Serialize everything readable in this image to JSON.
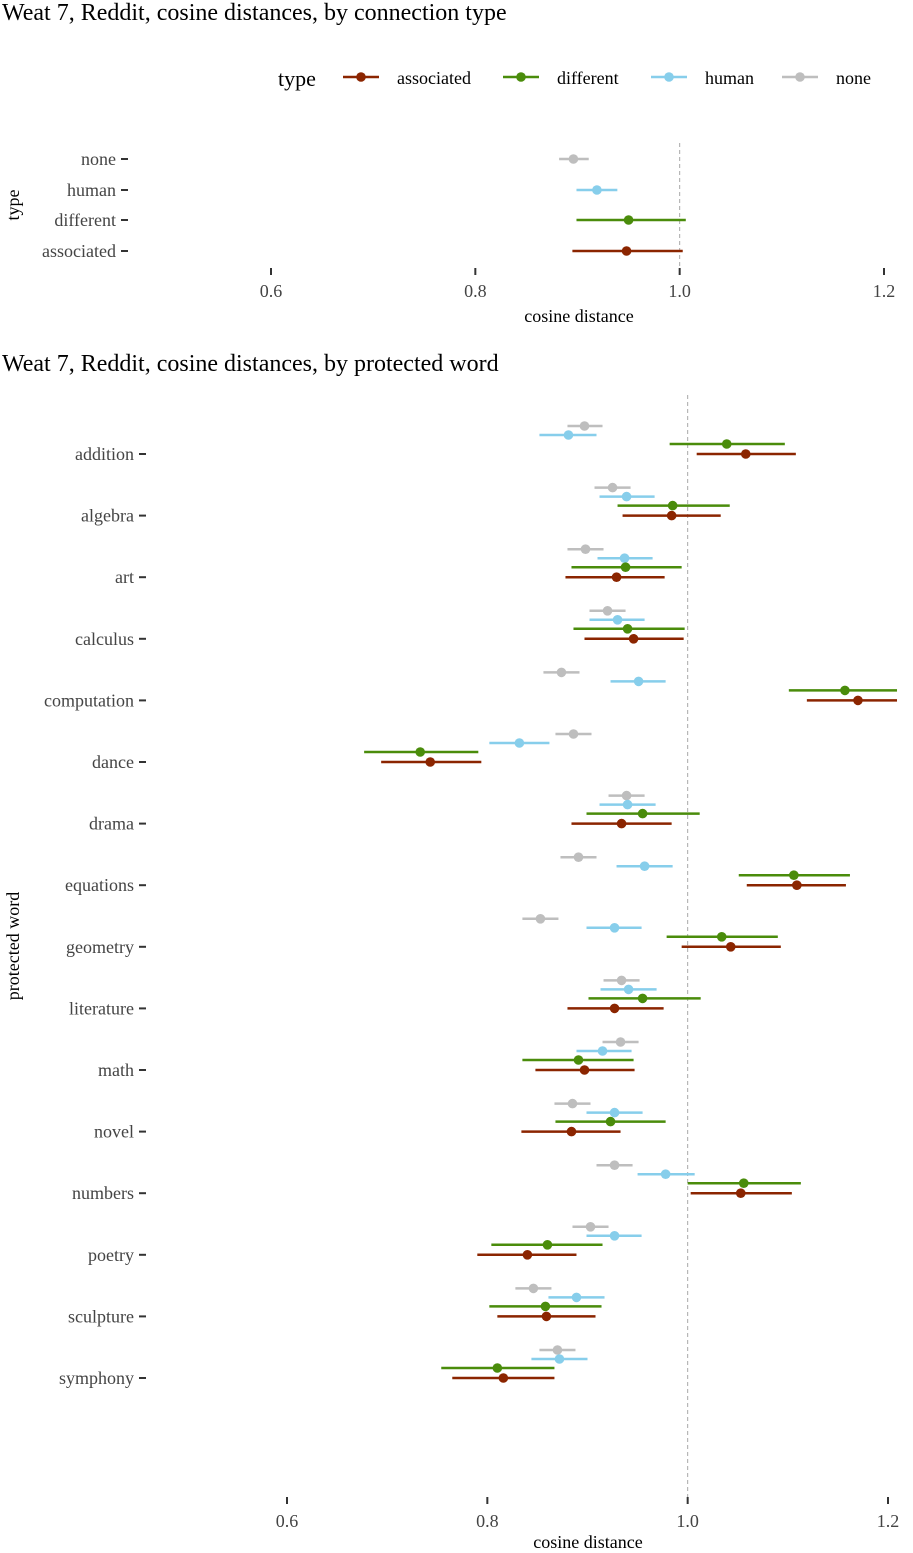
{
  "colors": {
    "associated": "#8B2500",
    "different": "#4A8C0B",
    "human": "#87CEEB",
    "none": "#BEBEBE",
    "reference_line": "#A9A9A9"
  },
  "chart_data": [
    {
      "type": "scatter",
      "style": "point-with-horizontal-interval",
      "title": "Weat 7, Reddit,  cosine distances, by connection type",
      "xlabel": "cosine distance",
      "ylabel": "type",
      "xlim": [
        0.47,
        1.22
      ],
      "xticks": [
        0.6,
        0.8,
        1.0,
        1.2
      ],
      "xtick_labels": [
        "0.6",
        "0.8",
        "1.0",
        "1.2"
      ],
      "reference_x": 1.0,
      "legend": {
        "title": "type",
        "position": "top",
        "entries": [
          "associated",
          "different",
          "human",
          "none"
        ]
      },
      "categories": [
        "none",
        "human",
        "different",
        "associated"
      ],
      "series": [
        {
          "name": "none",
          "color_key": "none",
          "points": [
            {
              "category": "none",
              "x": 0.896,
              "lo": 0.882,
              "hi": 0.911
            }
          ]
        },
        {
          "name": "human",
          "color_key": "human",
          "points": [
            {
              "category": "human",
              "x": 0.919,
              "lo": 0.899,
              "hi": 0.939
            }
          ]
        },
        {
          "name": "different",
          "color_key": "different",
          "points": [
            {
              "category": "different",
              "x": 0.95,
              "lo": 0.899,
              "hi": 1.006
            }
          ]
        },
        {
          "name": "associated",
          "color_key": "associated",
          "points": [
            {
              "category": "associated",
              "x": 0.948,
              "lo": 0.895,
              "hi": 1.003
            }
          ]
        }
      ]
    },
    {
      "type": "scatter",
      "style": "point-with-horizontal-interval",
      "title": "Weat 7, Reddit, cosine distances, by protected word",
      "xlabel": "cosine distance",
      "ylabel": "protected word",
      "xlim": [
        0.45,
        1.22
      ],
      "xticks": [
        0.6,
        0.8,
        1.0,
        1.2
      ],
      "xtick_labels": [
        "0.6",
        "0.8",
        "1.0",
        "1.2"
      ],
      "reference_x": 1.0,
      "categories": [
        "addition",
        "algebra",
        "art",
        "calculus",
        "computation",
        "dance",
        "drama",
        "equations",
        "geometry",
        "literature",
        "math",
        "novel",
        "numbers",
        "poetry",
        "sculpture",
        "symphony"
      ],
      "series_order": [
        "none",
        "human",
        "different",
        "associated"
      ],
      "series": [
        {
          "name": "none",
          "color_key": "none",
          "points": [
            {
              "category": "addition",
              "x": 0.897,
              "lo": 0.88,
              "hi": 0.915
            },
            {
              "category": "algebra",
              "x": 0.925,
              "lo": 0.907,
              "hi": 0.943
            },
            {
              "category": "art",
              "x": 0.898,
              "lo": 0.88,
              "hi": 0.916
            },
            {
              "category": "calculus",
              "x": 0.92,
              "lo": 0.902,
              "hi": 0.938
            },
            {
              "category": "computation",
              "x": 0.874,
              "lo": 0.856,
              "hi": 0.892
            },
            {
              "category": "dance",
              "x": 0.886,
              "lo": 0.868,
              "hi": 0.904
            },
            {
              "category": "drama",
              "x": 0.939,
              "lo": 0.921,
              "hi": 0.957
            },
            {
              "category": "equations",
              "x": 0.891,
              "lo": 0.873,
              "hi": 0.909
            },
            {
              "category": "geometry",
              "x": 0.853,
              "lo": 0.835,
              "hi": 0.871
            },
            {
              "category": "literature",
              "x": 0.934,
              "lo": 0.916,
              "hi": 0.952
            },
            {
              "category": "math",
              "x": 0.933,
              "lo": 0.915,
              "hi": 0.951
            },
            {
              "category": "novel",
              "x": 0.885,
              "lo": 0.867,
              "hi": 0.903
            },
            {
              "category": "numbers",
              "x": 0.927,
              "lo": 0.909,
              "hi": 0.945
            },
            {
              "category": "poetry",
              "x": 0.903,
              "lo": 0.885,
              "hi": 0.921
            },
            {
              "category": "sculpture",
              "x": 0.846,
              "lo": 0.828,
              "hi": 0.864
            },
            {
              "category": "symphony",
              "x": 0.87,
              "lo": 0.852,
              "hi": 0.888
            }
          ]
        },
        {
          "name": "human",
          "color_key": "human",
          "points": [
            {
              "category": "addition",
              "x": 0.881,
              "lo": 0.852,
              "hi": 0.909
            },
            {
              "category": "algebra",
              "x": 0.939,
              "lo": 0.912,
              "hi": 0.967
            },
            {
              "category": "art",
              "x": 0.937,
              "lo": 0.91,
              "hi": 0.965
            },
            {
              "category": "calculus",
              "x": 0.93,
              "lo": 0.902,
              "hi": 0.957
            },
            {
              "category": "computation",
              "x": 0.951,
              "lo": 0.923,
              "hi": 0.978
            },
            {
              "category": "dance",
              "x": 0.832,
              "lo": 0.802,
              "hi": 0.862
            },
            {
              "category": "drama",
              "x": 0.94,
              "lo": 0.912,
              "hi": 0.968
            },
            {
              "category": "equations",
              "x": 0.957,
              "lo": 0.929,
              "hi": 0.985
            },
            {
              "category": "geometry",
              "x": 0.927,
              "lo": 0.899,
              "hi": 0.954
            },
            {
              "category": "literature",
              "x": 0.941,
              "lo": 0.913,
              "hi": 0.969
            },
            {
              "category": "math",
              "x": 0.915,
              "lo": 0.889,
              "hi": 0.944
            },
            {
              "category": "novel",
              "x": 0.927,
              "lo": 0.899,
              "hi": 0.955
            },
            {
              "category": "numbers",
              "x": 0.978,
              "lo": 0.95,
              "hi": 1.007
            },
            {
              "category": "poetry",
              "x": 0.927,
              "lo": 0.899,
              "hi": 0.954
            },
            {
              "category": "sculpture",
              "x": 0.889,
              "lo": 0.861,
              "hi": 0.917
            },
            {
              "category": "symphony",
              "x": 0.872,
              "lo": 0.844,
              "hi": 0.9
            }
          ]
        },
        {
          "name": "different",
          "color_key": "different",
          "points": [
            {
              "category": "addition",
              "x": 1.039,
              "lo": 0.982,
              "hi": 1.097
            },
            {
              "category": "algebra",
              "x": 0.985,
              "lo": 0.93,
              "hi": 1.042
            },
            {
              "category": "art",
              "x": 0.938,
              "lo": 0.884,
              "hi": 0.994
            },
            {
              "category": "calculus",
              "x": 0.94,
              "lo": 0.886,
              "hi": 0.997
            },
            {
              "category": "computation",
              "x": 1.157,
              "lo": 1.101,
              "hi": 1.213
            },
            {
              "category": "dance",
              "x": 0.733,
              "lo": 0.677,
              "hi": 0.791
            },
            {
              "category": "drama",
              "x": 0.955,
              "lo": 0.899,
              "hi": 1.012
            },
            {
              "category": "equations",
              "x": 1.106,
              "lo": 1.051,
              "hi": 1.162
            },
            {
              "category": "geometry",
              "x": 1.034,
              "lo": 0.979,
              "hi": 1.09
            },
            {
              "category": "literature",
              "x": 0.955,
              "lo": 0.901,
              "hi": 1.013
            },
            {
              "category": "math",
              "x": 0.891,
              "lo": 0.835,
              "hi": 0.946
            },
            {
              "category": "novel",
              "x": 0.923,
              "lo": 0.868,
              "hi": 0.978
            },
            {
              "category": "numbers",
              "x": 1.056,
              "lo": 1.0,
              "hi": 1.113
            },
            {
              "category": "poetry",
              "x": 0.86,
              "lo": 0.804,
              "hi": 0.915
            },
            {
              "category": "sculpture",
              "x": 0.858,
              "lo": 0.802,
              "hi": 0.914
            },
            {
              "category": "symphony",
              "x": 0.81,
              "lo": 0.754,
              "hi": 0.867
            }
          ]
        },
        {
          "name": "associated",
          "color_key": "associated",
          "points": [
            {
              "category": "addition",
              "x": 1.058,
              "lo": 1.009,
              "hi": 1.108
            },
            {
              "category": "algebra",
              "x": 0.984,
              "lo": 0.935,
              "hi": 1.033
            },
            {
              "category": "art",
              "x": 0.929,
              "lo": 0.878,
              "hi": 0.977
            },
            {
              "category": "calculus",
              "x": 0.946,
              "lo": 0.897,
              "hi": 0.996
            },
            {
              "category": "computation",
              "x": 1.17,
              "lo": 1.119,
              "hi": 1.222
            },
            {
              "category": "dance",
              "x": 0.743,
              "lo": 0.694,
              "hi": 0.794
            },
            {
              "category": "drama",
              "x": 0.934,
              "lo": 0.884,
              "hi": 0.984
            },
            {
              "category": "equations",
              "x": 1.109,
              "lo": 1.059,
              "hi": 1.158
            },
            {
              "category": "geometry",
              "x": 1.043,
              "lo": 0.994,
              "hi": 1.093
            },
            {
              "category": "literature",
              "x": 0.927,
              "lo": 0.88,
              "hi": 0.976
            },
            {
              "category": "math",
              "x": 0.897,
              "lo": 0.848,
              "hi": 0.947
            },
            {
              "category": "novel",
              "x": 0.884,
              "lo": 0.834,
              "hi": 0.933
            },
            {
              "category": "numbers",
              "x": 1.053,
              "lo": 1.003,
              "hi": 1.104
            },
            {
              "category": "poetry",
              "x": 0.84,
              "lo": 0.79,
              "hi": 0.889
            },
            {
              "category": "sculpture",
              "x": 0.859,
              "lo": 0.81,
              "hi": 0.908
            },
            {
              "category": "symphony",
              "x": 0.816,
              "lo": 0.765,
              "hi": 0.867
            }
          ]
        }
      ]
    }
  ]
}
